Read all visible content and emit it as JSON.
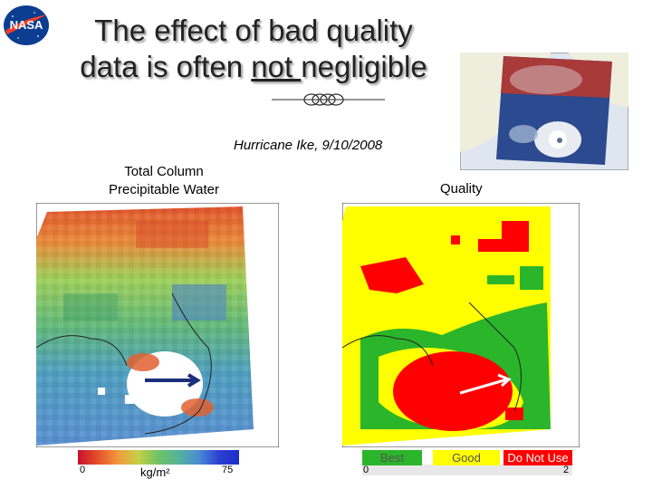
{
  "logo": {
    "text": "NASA"
  },
  "title": {
    "line1": "The effect of bad quality",
    "line2_pre": "data is often ",
    "line2_emph": "not ",
    "line2_post": "negligible"
  },
  "caption": "Hurricane Ike, 9/10/2008",
  "left_panel": {
    "title_line1": "Total Column",
    "title_line2": "Precipitable Water",
    "colorbar": {
      "min": "0",
      "max": "75",
      "unit": "kg/m²"
    }
  },
  "right_panel": {
    "title": "Quality",
    "legend": {
      "best": "Best",
      "good": "Good",
      "bad": "Do Not Use",
      "min": "0",
      "max": "2"
    }
  },
  "colors": {
    "best": "#2bb52b",
    "good": "#ffff00",
    "bad": "#ff0000"
  }
}
